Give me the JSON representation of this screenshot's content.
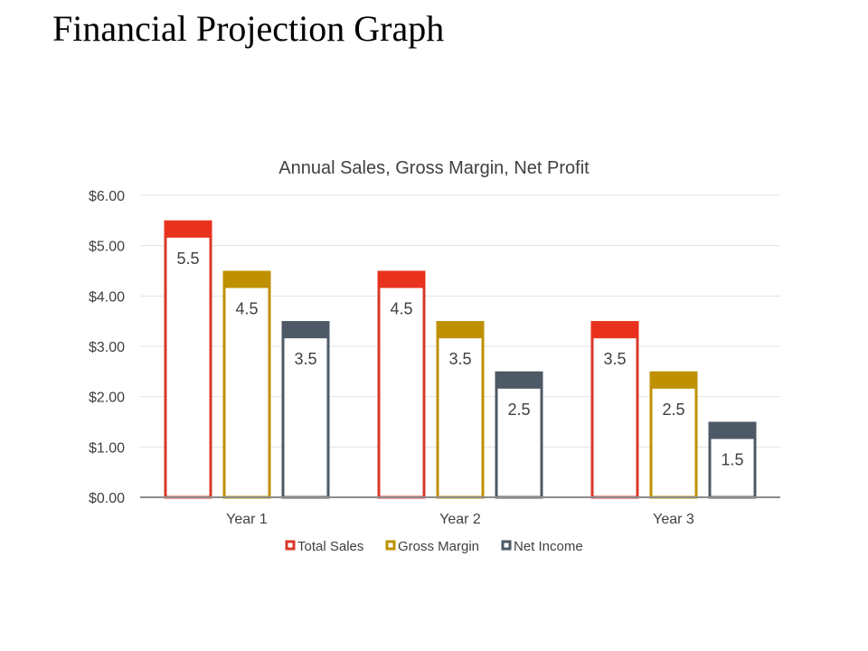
{
  "page": {
    "title": "Financial Projection Graph"
  },
  "chart_data": {
    "type": "bar",
    "title": "Annual Sales, Gross Margin, Net Profit",
    "xlabel": "",
    "ylabel": "",
    "ylim": [
      0,
      6
    ],
    "yticks": [
      0,
      1,
      2,
      3,
      4,
      5,
      6
    ],
    "ytick_labels": [
      "$0.00",
      "$1.00",
      "$2.00",
      "$3.00",
      "$4.00",
      "$5.00",
      "$6.00"
    ],
    "categories": [
      "Year 1",
      "Year 2",
      "Year 3"
    ],
    "series": [
      {
        "name": "Total Sales",
        "values": [
          5.5,
          4.5,
          3.5
        ],
        "labels": [
          "5.5",
          "4.5",
          "3.5"
        ],
        "color": "#d9382a",
        "top_color": "#e8321e"
      },
      {
        "name": "Gross Margin",
        "values": [
          4.5,
          3.5,
          2.5
        ],
        "labels": [
          "4.5",
          "3.5",
          "2.5"
        ],
        "color": "#bf9000",
        "top_color": "#bf9000"
      },
      {
        "name": "Net Income",
        "values": [
          3.5,
          2.5,
          1.5
        ],
        "labels": [
          "3.5",
          "2.5",
          "1.5"
        ],
        "color": "#4d5a66",
        "top_color": "#4d5a66"
      }
    ],
    "grid": true,
    "legend": "bottom",
    "colors": {
      "grid": "#e3e3e3",
      "axis": "#8c8c8c",
      "text": "#404040"
    }
  }
}
